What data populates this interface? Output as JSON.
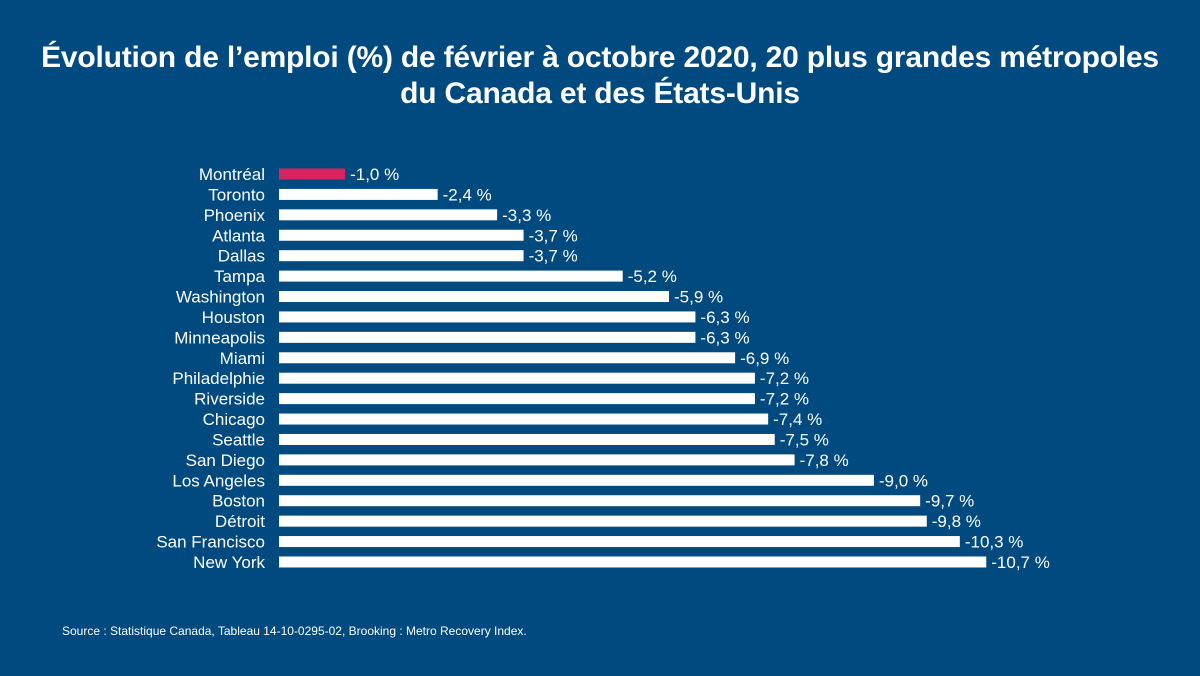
{
  "chart_data": {
    "type": "bar",
    "orientation": "horizontal",
    "title": "Évolution de l’emploi (%) de février à octobre 2020, 20 plus grandes métropoles du Canada et des États-Unis",
    "categories": [
      "Montréal",
      "Toronto",
      "Phoenix",
      "Atlanta",
      "Dallas",
      "Tampa",
      "Washington",
      "Houston",
      "Minneapolis",
      "Miami",
      "Philadelphie",
      "Riverside",
      "Chicago",
      "Seattle",
      "San Diego",
      "Los Angeles",
      "Boston",
      "Détroit",
      "San Francisco",
      "New York"
    ],
    "values": [
      -1.0,
      -2.4,
      -3.3,
      -3.7,
      -3.7,
      -5.2,
      -5.9,
      -6.3,
      -6.3,
      -6.9,
      -7.2,
      -7.2,
      -7.4,
      -7.5,
      -7.8,
      -9.0,
      -9.7,
      -9.8,
      -10.3,
      -10.7
    ],
    "data_labels": [
      "-1,0 %",
      "-2,4 %",
      "-3,3 %",
      "-3,7 %",
      "-3,7 %",
      "-5,2 %",
      "-5,9 %",
      "-6,3 %",
      "-6,3 %",
      "-6,9 %",
      "-7,2 %",
      "-7,2 %",
      "-7,4 %",
      "-7,5 %",
      "-7,8 %",
      "-9,0 %",
      "-9,7 %",
      "-9,8 %",
      "-10,3 %",
      "-10,7 %"
    ],
    "highlight_category": "Montréal",
    "colors": {
      "background": "#004a80",
      "bar": "#ffffff",
      "highlight": "#d6245e",
      "text": "#ffffff"
    },
    "grid": false,
    "legend": "none",
    "xlabel": "",
    "ylabel": ""
  },
  "source": "Source : Statistique Canada, Tableau 14-10-0295-02, Brooking : Metro Recovery Index."
}
